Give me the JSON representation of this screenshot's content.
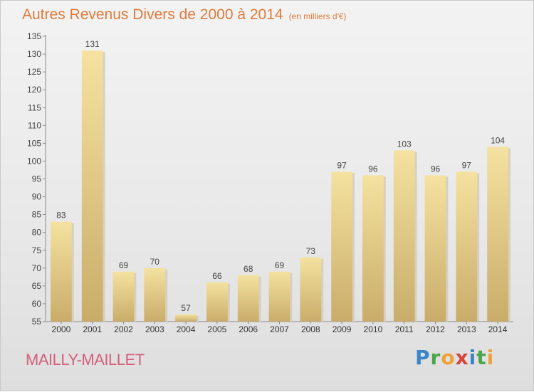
{
  "header": {
    "title": "Autres Revenus Divers de 2000 à 2014",
    "subtitle": "(en milliers d'€)"
  },
  "footer": {
    "place": "MAILLY-MAILLET",
    "logo": "Proxiti"
  },
  "colors": {
    "bar_light": "#f5e2a0",
    "bar_dark": "#c9ac6a",
    "title": "#e07a3a",
    "place": "#d45f7c"
  },
  "chart_data": {
    "type": "bar",
    "title": "Autres Revenus Divers de 2000 à 2014",
    "subtitle": "(en milliers d'€)",
    "categories": [
      "2000",
      "2001",
      "2002",
      "2003",
      "2004",
      "2005",
      "2006",
      "2007",
      "2008",
      "2009",
      "2010",
      "2011",
      "2012",
      "2013",
      "2014"
    ],
    "values": [
      83,
      131,
      69,
      70,
      57,
      66,
      68,
      69,
      73,
      97,
      96,
      103,
      96,
      97,
      104
    ],
    "ylim": [
      55,
      135
    ],
    "yticks": [
      55,
      60,
      65,
      70,
      75,
      80,
      85,
      90,
      95,
      100,
      105,
      110,
      115,
      120,
      125,
      130,
      135
    ],
    "grid": false,
    "data_labels": true
  }
}
